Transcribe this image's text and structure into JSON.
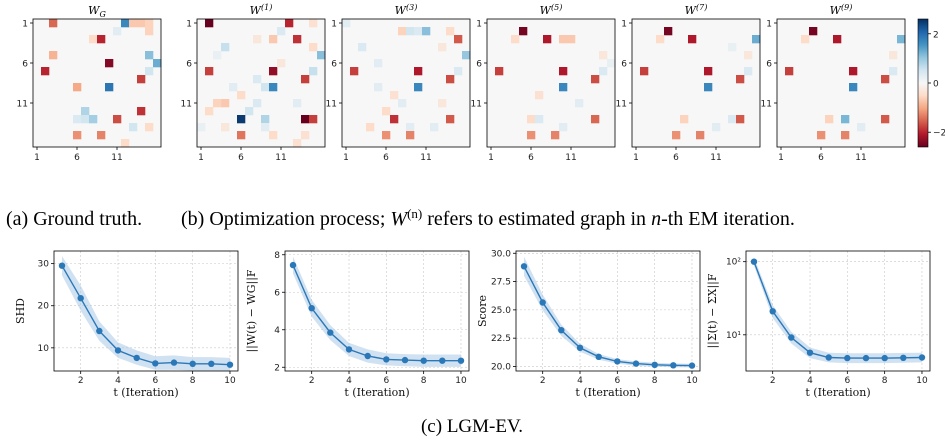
{
  "colors": {
    "colormap": [
      "#67001f",
      "#b2182b",
      "#d6604d",
      "#f4a582",
      "#fddbc7",
      "#f7f7f7",
      "#d1e5f0",
      "#92c5de",
      "#4393c3",
      "#2166ac",
      "#053061"
    ],
    "line": "#2b78b8",
    "band": "#aac9e6",
    "grid": "#c8c8c8"
  },
  "captions": {
    "a": "(a) Ground truth.",
    "b_pre": "(b) Optimization process; ",
    "b_mid": " refers to estimated graph in ",
    "b_post": "-th EM iteration.",
    "b_W": "W",
    "b_sup": "(n)",
    "b_n": "n",
    "c": "(c) LGM-EV."
  },
  "colorbar": {
    "ticks": [
      "2",
      "0",
      "−2"
    ],
    "vmin": -2.6,
    "vmax": 2.6
  },
  "chart_data": [
    {
      "type": "heatmap",
      "title_main": "W",
      "title_sub": "G",
      "tick_labels": [
        "1",
        "6",
        "11"
      ],
      "size": 16,
      "cells": [
        [
          0,
          2,
          -1.5
        ],
        [
          0,
          11,
          1.7
        ],
        [
          0,
          12,
          -0.7
        ],
        [
          0,
          13,
          -0.7
        ],
        [
          0,
          14,
          -0.6
        ],
        [
          1,
          10,
          0.3
        ],
        [
          1,
          14,
          -0.6
        ],
        [
          2,
          7,
          -0.5
        ],
        [
          2,
          8,
          -2.0
        ],
        [
          4,
          2,
          -0.9
        ],
        [
          4,
          14,
          1.1
        ],
        [
          5,
          15,
          1.3
        ],
        [
          5,
          9,
          -2.4
        ],
        [
          6,
          1,
          -2.0
        ],
        [
          6,
          14,
          0.5
        ],
        [
          7,
          13,
          -1.8
        ],
        [
          8,
          5,
          -1.0
        ],
        [
          8,
          9,
          1.9
        ],
        [
          11,
          6,
          0.8
        ],
        [
          11,
          13,
          -1.9
        ],
        [
          12,
          5,
          0.4
        ],
        [
          12,
          6,
          0.5
        ],
        [
          12,
          7,
          0.9
        ],
        [
          12,
          10,
          -1.7
        ],
        [
          13,
          12,
          0.5
        ],
        [
          13,
          14,
          -0.5
        ],
        [
          14,
          8,
          -1.3
        ],
        [
          14,
          5,
          -1.2
        ],
        [
          15,
          11,
          -0.5
        ]
      ]
    },
    {
      "type": "heatmap",
      "title_main": "W",
      "title_sub": "(1)",
      "tick_labels": [
        "1",
        "6",
        "11"
      ],
      "size": 16,
      "cells": [
        [
          0,
          1,
          -2.9
        ],
        [
          0,
          11,
          -2.0
        ],
        [
          0,
          14,
          -0.4
        ],
        [
          1,
          10,
          0.4
        ],
        [
          2,
          7,
          -0.3
        ],
        [
          2,
          9,
          -0.7
        ],
        [
          2,
          12,
          -1.9
        ],
        [
          3,
          3,
          0.6
        ],
        [
          3,
          14,
          -0.5
        ],
        [
          4,
          15,
          1.1
        ],
        [
          6,
          1,
          -1.8
        ],
        [
          6,
          9,
          -2.3
        ],
        [
          6,
          14,
          0.6
        ],
        [
          7,
          7,
          0.4
        ],
        [
          7,
          13,
          -1.8
        ],
        [
          8,
          4,
          0.3
        ],
        [
          8,
          8,
          0.5
        ],
        [
          8,
          9,
          1.7
        ],
        [
          9,
          5,
          -0.5
        ],
        [
          10,
          3,
          -0.7
        ],
        [
          10,
          2,
          -0.6
        ],
        [
          10,
          7,
          0.4
        ],
        [
          10,
          12,
          0.3
        ],
        [
          11,
          1,
          -0.5
        ],
        [
          11,
          6,
          0.5
        ],
        [
          12,
          5,
          2.5
        ],
        [
          12,
          8,
          0.8
        ],
        [
          12,
          13,
          -2.6
        ],
        [
          12,
          14,
          -1.8
        ],
        [
          13,
          0,
          0.2
        ],
        [
          13,
          3,
          -0.3
        ],
        [
          13,
          8,
          0.3
        ],
        [
          14,
          13,
          -0.4
        ],
        [
          14,
          5,
          -1.4
        ],
        [
          14,
          9,
          -0.5
        ],
        [
          15,
          12,
          -0.4
        ],
        [
          5,
          10,
          -0.3
        ],
        [
          4,
          2,
          0.2
        ]
      ]
    },
    {
      "type": "heatmap",
      "title_main": "W",
      "title_sub": "(3)",
      "tick_labels": [
        "1",
        "6",
        "11"
      ],
      "size": 16,
      "cells": [
        [
          0,
          0,
          0.3
        ],
        [
          1,
          7,
          -0.6
        ],
        [
          1,
          8,
          0.5
        ],
        [
          1,
          9,
          0.4
        ],
        [
          1,
          10,
          1.1
        ],
        [
          1,
          13,
          -0.5
        ],
        [
          2,
          14,
          -1.6
        ],
        [
          3,
          12,
          -0.3
        ],
        [
          4,
          15,
          1.0
        ],
        [
          6,
          1,
          -1.8
        ],
        [
          6,
          9,
          -2.1
        ],
        [
          6,
          14,
          0.4
        ],
        [
          7,
          13,
          -1.7
        ],
        [
          8,
          4,
          0.3
        ],
        [
          8,
          9,
          1.7
        ],
        [
          9,
          6,
          -0.4
        ],
        [
          10,
          7,
          0.3
        ],
        [
          11,
          5,
          -0.5
        ],
        [
          12,
          6,
          -1.9
        ],
        [
          12,
          13,
          -1.6
        ],
        [
          13,
          3,
          -0.5
        ],
        [
          13,
          8,
          0.3
        ],
        [
          14,
          8,
          -1.3
        ],
        [
          14,
          5,
          -1.2
        ],
        [
          3,
          2,
          0.4
        ],
        [
          13,
          11,
          0.3
        ],
        [
          10,
          12,
          -0.3
        ],
        [
          5,
          4,
          0.3
        ]
      ]
    },
    {
      "type": "heatmap",
      "title_main": "W",
      "title_sub": "(5)",
      "tick_labels": [
        "1",
        "6",
        "11"
      ],
      "size": 16,
      "cells": [
        [
          1,
          4,
          -2.5
        ],
        [
          2,
          3,
          -0.5
        ],
        [
          2,
          7,
          -2.1
        ],
        [
          2,
          9,
          -0.7
        ],
        [
          2,
          10,
          -0.7
        ],
        [
          4,
          14,
          -0.3
        ],
        [
          6,
          1,
          -1.8
        ],
        [
          6,
          9,
          -2.1
        ],
        [
          6,
          14,
          0.4
        ],
        [
          7,
          13,
          -1.7
        ],
        [
          8,
          9,
          1.7
        ],
        [
          9,
          6,
          -0.4
        ],
        [
          12,
          5,
          -0.5
        ],
        [
          12,
          6,
          0.4
        ],
        [
          12,
          13,
          -1.5
        ],
        [
          13,
          9,
          0.3
        ],
        [
          14,
          8,
          -1.3
        ],
        [
          14,
          5,
          -1.2
        ],
        [
          5,
          15,
          0.2
        ],
        [
          10,
          11,
          0.3
        ]
      ]
    },
    {
      "type": "heatmap",
      "title_main": "W",
      "title_sub": "(7)",
      "tick_labels": [
        "1",
        "6",
        "11"
      ],
      "size": 16,
      "cells": [
        [
          1,
          4,
          -2.5
        ],
        [
          2,
          3,
          -0.5
        ],
        [
          2,
          7,
          -2.1
        ],
        [
          2,
          15,
          1.3
        ],
        [
          4,
          14,
          -0.3
        ],
        [
          6,
          1,
          -1.8
        ],
        [
          6,
          9,
          -2.1
        ],
        [
          6,
          14,
          0.4
        ],
        [
          7,
          13,
          -1.7
        ],
        [
          8,
          9,
          1.7
        ],
        [
          12,
          6,
          -0.6
        ],
        [
          12,
          12,
          0.4
        ],
        [
          12,
          13,
          -1.6
        ],
        [
          13,
          10,
          0.3
        ],
        [
          14,
          8,
          -1.3
        ],
        [
          14,
          5,
          -1.2
        ],
        [
          3,
          12,
          0.2
        ]
      ]
    },
    {
      "type": "heatmap",
      "title_main": "W",
      "title_sub": "(9)",
      "tick_labels": [
        "1",
        "6",
        "11"
      ],
      "size": 16,
      "cells": [
        [
          1,
          4,
          -2.5
        ],
        [
          2,
          3,
          -0.5
        ],
        [
          2,
          7,
          -2.1
        ],
        [
          2,
          15,
          1.2
        ],
        [
          4,
          14,
          -0.3
        ],
        [
          6,
          1,
          -1.8
        ],
        [
          6,
          9,
          -2.1
        ],
        [
          6,
          14,
          0.4
        ],
        [
          7,
          13,
          -1.7
        ],
        [
          8,
          9,
          1.7
        ],
        [
          12,
          6,
          -0.6
        ],
        [
          12,
          8,
          1.2
        ],
        [
          12,
          13,
          -1.6
        ],
        [
          14,
          8,
          -1.3
        ],
        [
          14,
          5,
          -1.2
        ],
        [
          13,
          10,
          0.3
        ]
      ]
    },
    {
      "type": "line",
      "ylabel": "SHD",
      "xlabel": "t (Iteration)",
      "yscale": "linear",
      "x": [
        1,
        2,
        3,
        4,
        5,
        6,
        7,
        8,
        9,
        10
      ],
      "xticks": [
        2,
        4,
        6,
        8,
        10
      ],
      "yticks": [
        10,
        20,
        30
      ],
      "ylim": [
        4.5,
        33
      ],
      "y": [
        29.5,
        21.8,
        14.0,
        9.4,
        7.6,
        6.3,
        6.5,
        6.2,
        6.2,
        6.0
      ],
      "lo": [
        27.2,
        18.8,
        11.7,
        7.6,
        6.0,
        4.8,
        4.8,
        4.6,
        4.6,
        4.5
      ],
      "hi": [
        31.8,
        24.8,
        16.3,
        11.3,
        9.4,
        8.0,
        8.2,
        7.8,
        7.8,
        7.6
      ]
    },
    {
      "type": "line",
      "ylabel": "||W(t) − WG||F",
      "xlabel": "t (Iteration)",
      "yscale": "linear",
      "x": [
        1,
        2,
        3,
        4,
        5,
        6,
        7,
        8,
        9,
        10
      ],
      "xticks": [
        2,
        4,
        6,
        8,
        10
      ],
      "yticks": [
        2,
        4,
        6,
        8
      ],
      "ylim": [
        1.8,
        8.2
      ],
      "y": [
        7.45,
        5.15,
        3.85,
        2.95,
        2.6,
        2.42,
        2.38,
        2.35,
        2.35,
        2.35
      ],
      "lo": [
        7.0,
        4.7,
        3.45,
        2.6,
        2.25,
        2.1,
        2.05,
        2.02,
        2.02,
        2.02
      ],
      "hi": [
        7.9,
        5.6,
        4.25,
        3.3,
        2.95,
        2.75,
        2.7,
        2.68,
        2.68,
        2.68
      ]
    },
    {
      "type": "line",
      "ylabel": "Score",
      "xlabel": "t (Iteration)",
      "yscale": "linear",
      "x": [
        1,
        2,
        3,
        4,
        5,
        6,
        7,
        8,
        9,
        10
      ],
      "xticks": [
        2,
        4,
        6,
        8,
        10
      ],
      "yticks": [
        20.0,
        22.5,
        25.0,
        27.5,
        30.0
      ],
      "ytick_labels": [
        "20.0",
        "22.5",
        "25.0",
        "27.5",
        "30.0"
      ],
      "ylim": [
        19.6,
        30.2
      ],
      "y": [
        28.85,
        25.65,
        23.2,
        21.65,
        20.85,
        20.45,
        20.25,
        20.15,
        20.1,
        20.08
      ],
      "lo": [
        28.0,
        24.95,
        22.7,
        21.3,
        20.6,
        20.25,
        20.05,
        19.98,
        19.94,
        19.92
      ],
      "hi": [
        29.7,
        26.35,
        23.7,
        22.0,
        21.1,
        20.65,
        20.45,
        20.32,
        20.26,
        20.24
      ]
    },
    {
      "type": "line",
      "ylabel": "||Σ(t) − ΣX||F",
      "xlabel": "t (Iteration)",
      "yscale": "log",
      "x": [
        1,
        2,
        3,
        4,
        5,
        6,
        7,
        8,
        9,
        10
      ],
      "xticks": [
        2,
        4,
        6,
        8,
        10
      ],
      "yticks": [
        10,
        100
      ],
      "ytick_labels": [
        "10¹",
        "10²"
      ],
      "ylim": [
        3.2,
        140
      ],
      "y": [
        100,
        21,
        9.2,
        5.7,
        4.9,
        4.8,
        4.8,
        4.8,
        4.85,
        4.9
      ],
      "lo": [
        88,
        17,
        7.6,
        4.8,
        4.2,
        4.1,
        4.1,
        4.1,
        4.15,
        4.2
      ],
      "hi": [
        114,
        25.5,
        11,
        6.7,
        5.7,
        5.6,
        5.6,
        5.6,
        5.65,
        5.7
      ]
    }
  ]
}
